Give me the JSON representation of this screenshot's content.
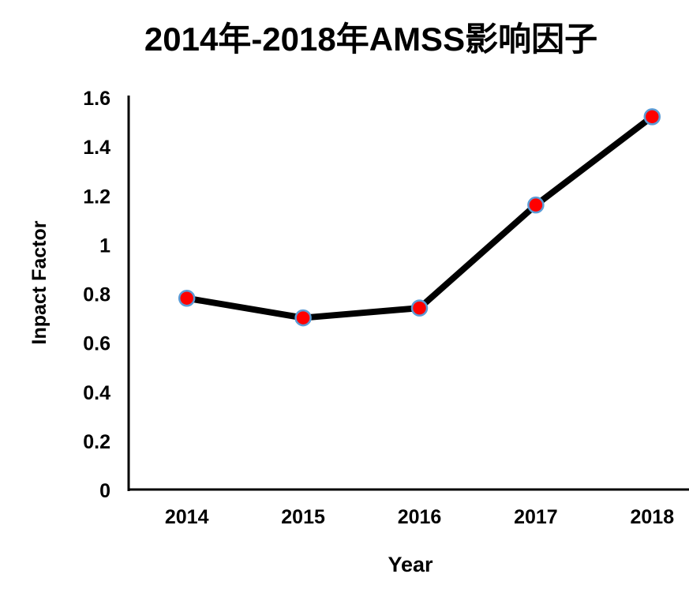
{
  "chart_data": {
    "type": "line",
    "title": "2014年-2018年AMSS影响因子",
    "xlabel": "Year",
    "ylabel": "Inpact Factor",
    "categories": [
      "2014",
      "2015",
      "2016",
      "2017",
      "2018"
    ],
    "values": [
      0.78,
      0.7,
      0.74,
      1.16,
      1.52
    ],
    "ylim": [
      0,
      1.6
    ],
    "yticks": [
      "0",
      "0.2",
      "0.4",
      "0.6",
      "0.8",
      "1",
      "1.2",
      "1.4",
      "1.6"
    ],
    "grid": false,
    "legend": "none",
    "colors": {
      "line": "#000000",
      "marker_fill": "#ff0000",
      "marker_edge": "#5b9bd5"
    }
  }
}
